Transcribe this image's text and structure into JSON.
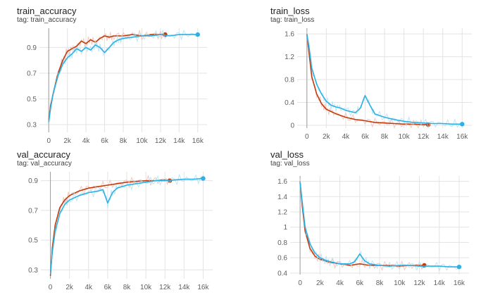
{
  "colors": {
    "red": "#c23a0c",
    "blue": "#2bb1e6",
    "red_raw": "#f3b5a6",
    "blue_raw": "#a8dff5",
    "grid": "#e3e3e3",
    "axis": "#9e9e9e"
  },
  "chart_data": [
    {
      "type": "line",
      "title": "train_accuracy",
      "subtitle": "tag: train_accuracy",
      "xlabel": "",
      "ylabel": "",
      "xlim": [
        -1000,
        17000
      ],
      "ylim": [
        0.24,
        1.05
      ],
      "x_ticks": [
        0,
        2000,
        4000,
        6000,
        8000,
        10000,
        12000,
        14000,
        16000
      ],
      "x_tick_labels": [
        "0",
        "2k",
        "4k",
        "6k",
        "8k",
        "10k",
        "12k",
        "14k",
        "16k"
      ],
      "y_ticks": [
        0.3,
        0.5,
        0.7,
        0.9
      ],
      "y_tick_labels": [
        "0.3",
        "0.5",
        "0.7",
        "0.9"
      ],
      "grid": true,
      "series": [
        {
          "color_key": "red",
          "x": [
            0,
            200,
            500,
            1000,
            1500,
            2000,
            2500,
            3000,
            3500,
            4000,
            4500,
            5000,
            5500,
            6000,
            6500,
            7000,
            8000,
            9000,
            10000,
            11000,
            12000,
            12500
          ],
          "y": [
            0.34,
            0.45,
            0.55,
            0.7,
            0.8,
            0.87,
            0.89,
            0.91,
            0.95,
            0.93,
            0.96,
            0.94,
            0.97,
            0.99,
            0.98,
            0.99,
            0.99,
            1.0,
            0.99,
            1.0,
            1.0,
            1.0
          ]
        },
        {
          "color_key": "blue",
          "x": [
            0,
            200,
            500,
            1000,
            1500,
            2000,
            2500,
            3000,
            3500,
            4000,
            4500,
            5000,
            5500,
            6000,
            6500,
            7000,
            7500,
            8000,
            9000,
            10000,
            11000,
            12000,
            13000,
            14000,
            15000,
            16000
          ],
          "y": [
            0.32,
            0.43,
            0.55,
            0.68,
            0.77,
            0.82,
            0.85,
            0.89,
            0.87,
            0.9,
            0.88,
            0.92,
            0.9,
            0.86,
            0.9,
            0.94,
            0.96,
            0.97,
            0.98,
            0.99,
            0.99,
            1.0,
            0.99,
            1.0,
            1.0,
            1.0
          ]
        }
      ]
    },
    {
      "type": "line",
      "title": "train_loss",
      "subtitle": "tag: train_loss",
      "xlabel": "",
      "ylabel": "",
      "xlim": [
        -1000,
        17000
      ],
      "ylim": [
        -0.05,
        1.7
      ],
      "x_ticks": [
        0,
        2000,
        4000,
        6000,
        8000,
        10000,
        12000,
        14000,
        16000
      ],
      "x_tick_labels": [
        "0",
        "2k",
        "4k",
        "6k",
        "8k",
        "10k",
        "12k",
        "14k",
        "16k"
      ],
      "y_ticks": [
        0,
        0.4,
        0.8,
        1.2,
        1.6
      ],
      "y_tick_labels": [
        "0",
        "0.4",
        "0.8",
        "1.2",
        "1.6"
      ],
      "grid": true,
      "series": [
        {
          "color_key": "red",
          "x": [
            0,
            200,
            500,
            1000,
            1500,
            2000,
            2500,
            3000,
            4000,
            5000,
            6000,
            7000,
            8000,
            9000,
            10000,
            11000,
            12000,
            12500
          ],
          "y": [
            1.6,
            1.3,
            0.85,
            0.55,
            0.38,
            0.28,
            0.24,
            0.2,
            0.14,
            0.1,
            0.08,
            0.05,
            0.04,
            0.03,
            0.02,
            0.02,
            0.01,
            0.01
          ]
        },
        {
          "color_key": "blue",
          "x": [
            0,
            200,
            500,
            1000,
            1500,
            2000,
            2500,
            3000,
            3500,
            4000,
            5000,
            5500,
            6000,
            6500,
            7000,
            8000,
            9000,
            10000,
            11000,
            12000,
            13000,
            14000,
            15000,
            16000
          ],
          "y": [
            1.58,
            1.4,
            1.0,
            0.72,
            0.55,
            0.42,
            0.35,
            0.32,
            0.3,
            0.26,
            0.22,
            0.3,
            0.52,
            0.35,
            0.2,
            0.14,
            0.1,
            0.07,
            0.05,
            0.04,
            0.03,
            0.03,
            0.02,
            0.02
          ]
        }
      ]
    },
    {
      "type": "line",
      "title": "val_accuracy",
      "subtitle": "tag: val_accuracy",
      "xlabel": "",
      "ylabel": "",
      "xlim": [
        -1000,
        17000
      ],
      "ylim": [
        0.24,
        0.96
      ],
      "x_ticks": [
        0,
        2000,
        4000,
        6000,
        8000,
        10000,
        12000,
        14000,
        16000
      ],
      "x_tick_labels": [
        "0",
        "2k",
        "4k",
        "6k",
        "8k",
        "10k",
        "12k",
        "14k",
        "16k"
      ],
      "y_ticks": [
        0.3,
        0.5,
        0.7,
        0.9
      ],
      "y_tick_labels": [
        "0.3",
        "0.5",
        "0.7",
        "0.9"
      ],
      "grid": true,
      "series": [
        {
          "color_key": "red",
          "x": [
            0,
            200,
            500,
            1000,
            1500,
            2000,
            3000,
            4000,
            5000,
            6000,
            7000,
            8000,
            9000,
            10000,
            11000,
            12000,
            12500
          ],
          "y": [
            0.26,
            0.45,
            0.6,
            0.72,
            0.77,
            0.8,
            0.83,
            0.85,
            0.86,
            0.87,
            0.88,
            0.89,
            0.895,
            0.9,
            0.9,
            0.905,
            0.9
          ]
        },
        {
          "color_key": "blue",
          "x": [
            0,
            200,
            500,
            1000,
            1500,
            2000,
            3000,
            4000,
            5000,
            5500,
            6000,
            6500,
            7000,
            8000,
            9000,
            10000,
            11000,
            12000,
            13000,
            14000,
            15000,
            16000
          ],
          "y": [
            0.27,
            0.42,
            0.56,
            0.68,
            0.74,
            0.77,
            0.8,
            0.82,
            0.83,
            0.84,
            0.75,
            0.82,
            0.85,
            0.87,
            0.88,
            0.89,
            0.9,
            0.9,
            0.905,
            0.91,
            0.91,
            0.915
          ]
        }
      ]
    },
    {
      "type": "line",
      "title": "val_loss",
      "subtitle": "tag: val_loss",
      "xlabel": "",
      "ylabel": "",
      "xlim": [
        -1000,
        17000
      ],
      "ylim": [
        0.38,
        1.67
      ],
      "x_ticks": [
        0,
        2000,
        4000,
        6000,
        8000,
        10000,
        12000,
        14000,
        16000
      ],
      "x_tick_labels": [
        "0",
        "2k",
        "4k",
        "6k",
        "8k",
        "10k",
        "12k",
        "14k",
        "16k"
      ],
      "y_ticks": [
        0.4,
        0.6,
        0.8,
        1,
        1.2,
        1.4,
        1.6
      ],
      "y_tick_labels": [
        "0.4",
        "0.6",
        "0.8",
        "1",
        "1.2",
        "1.4",
        "1.6"
      ],
      "grid": true,
      "series": [
        {
          "color_key": "red",
          "x": [
            0,
            200,
            500,
            1000,
            1500,
            2000,
            3000,
            4000,
            5000,
            6000,
            7000,
            8000,
            9000,
            10000,
            11000,
            12000,
            12500
          ],
          "y": [
            1.6,
            1.3,
            0.95,
            0.72,
            0.62,
            0.58,
            0.54,
            0.52,
            0.5,
            0.52,
            0.5,
            0.5,
            0.5,
            0.49,
            0.5,
            0.5,
            0.5
          ]
        },
        {
          "color_key": "blue",
          "x": [
            0,
            200,
            500,
            1000,
            1500,
            2000,
            2500,
            3000,
            4000,
            5000,
            5500,
            6000,
            6500,
            7000,
            8000,
            9000,
            10000,
            11000,
            12000,
            13000,
            14000,
            15000,
            16000
          ],
          "y": [
            1.58,
            1.35,
            1.0,
            0.78,
            0.66,
            0.6,
            0.57,
            0.55,
            0.52,
            0.52,
            0.55,
            0.65,
            0.56,
            0.52,
            0.5,
            0.49,
            0.5,
            0.5,
            0.49,
            0.49,
            0.49,
            0.48,
            0.48
          ]
        }
      ]
    }
  ]
}
